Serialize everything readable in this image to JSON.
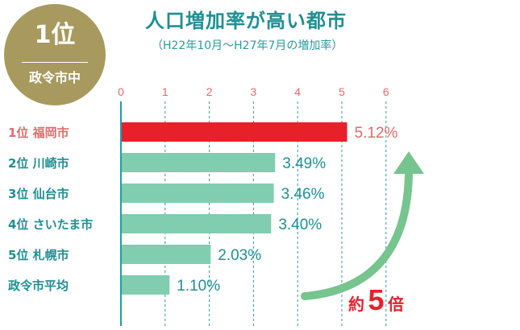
{
  "badge": {
    "rank": "1位",
    "category": "政令市中"
  },
  "chart_data": {
    "type": "bar",
    "orientation": "horizontal",
    "title": "人口増加率が高い都市",
    "subtitle": "（H22年10月〜H27年7月の増加率）",
    "x_ticks": [
      "0",
      "1",
      "2",
      "3",
      "4",
      "5",
      "6"
    ],
    "xlim": [
      0,
      6
    ],
    "grid": true,
    "categories": [
      "1位 福岡市",
      "2位 川崎市",
      "3位 仙台市",
      "4位 さいたま市",
      "5位 札幌市",
      "政令市平均"
    ],
    "values": [
      5.12,
      3.49,
      3.46,
      3.4,
      2.03,
      1.1
    ],
    "value_labels": [
      "5.12%",
      "3.49%",
      "3.46%",
      "3.40%",
      "2.03%",
      "1.10%"
    ],
    "colors": {
      "highlight": "#e8202a",
      "bar": "#80cdb0",
      "highlight_label": "#e8686a",
      "label": "#1f8f93",
      "axis": "#2a9aa0",
      "arrow": "#76c48e"
    },
    "annotation": {
      "prefix": "約",
      "number": "5",
      "suffix": "倍"
    }
  }
}
